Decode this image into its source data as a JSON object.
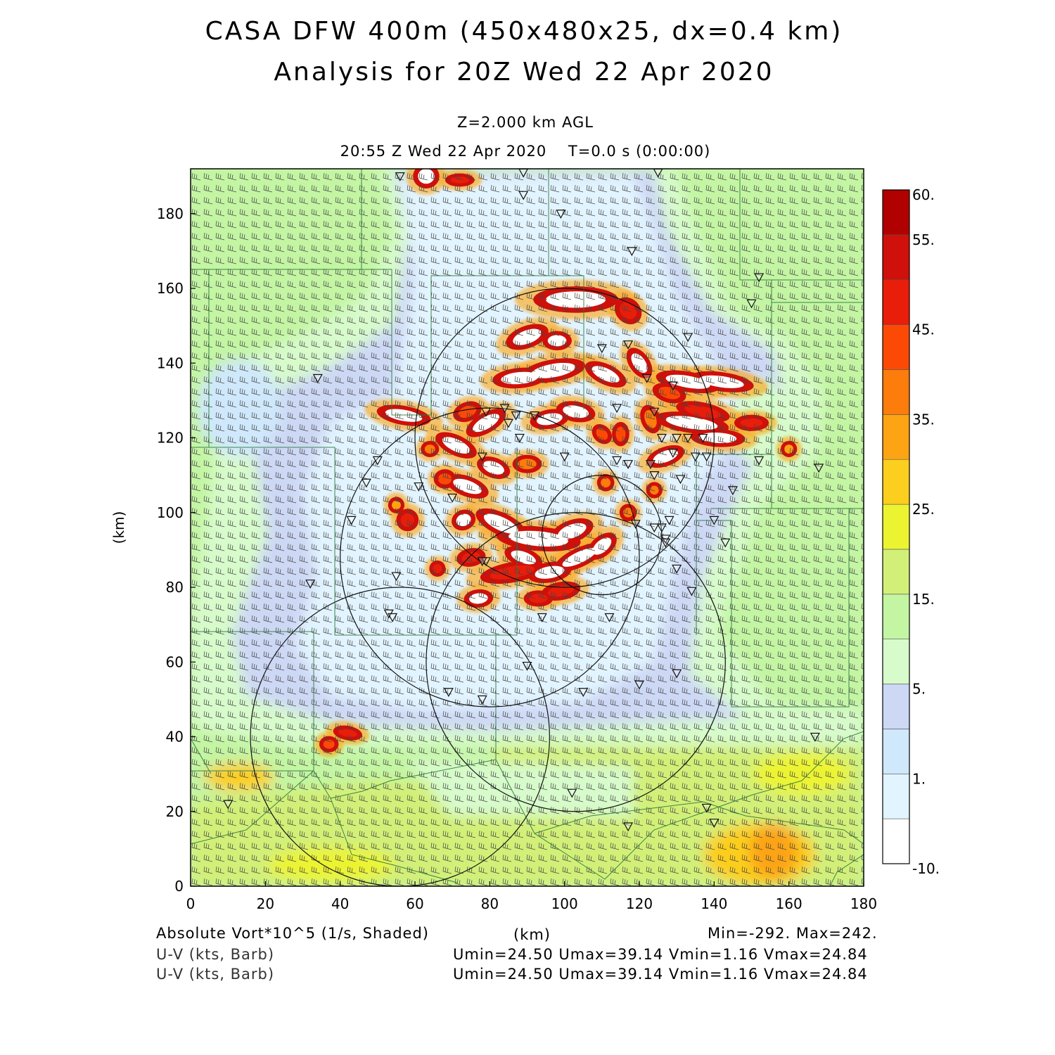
{
  "header": {
    "title": "CASA DFW 400m (450x480x25, dx=0.4 km)",
    "subtitle": "Analysis for 20Z Wed 22 Apr 2020",
    "level": "Z=2.000 km AGL",
    "valid_time": "20:55 Z Wed 22 Apr 2020    T=0.0 s (0:00:00)"
  },
  "axes": {
    "x_label": "(km)",
    "y_label": "(km)",
    "x_ticks": [
      "0",
      "20",
      "40",
      "60",
      "80",
      "100",
      "120",
      "140",
      "160",
      "180"
    ],
    "y_ticks": [
      "0",
      "20",
      "40",
      "60",
      "80",
      "100",
      "120",
      "140",
      "160",
      "180"
    ],
    "x_range": [
      0,
      180
    ],
    "y_range": [
      0,
      192
    ]
  },
  "colorbar": {
    "labels": [
      "60.",
      "55.",
      "45.",
      "35.",
      "25.",
      "15.",
      "5.",
      "1.",
      "-10."
    ],
    "colors": [
      "#ffffff",
      "#e2f4ff",
      "#cfe8fb",
      "#cdd8f5",
      "#d7fbcb",
      "#c3f5a3",
      "#d2f078",
      "#ecf432",
      "#fcce1e",
      "#fca414",
      "#fc7c0c",
      "#fc4a06",
      "#e81e0a",
      "#d0100a",
      "#b00000"
    ]
  },
  "footer": {
    "field": "Absolute Vort*10^5 (1/s, Shaded)",
    "units": "(km)",
    "minmax": "Min=-292. Max=242.",
    "wind1_label": "U-V (kts, Barb)",
    "wind1_stats": "Umin=24.50 Umax=39.14 Vmin=1.16 Vmax=24.84",
    "wind2_label": "U-V (kts, Barb)",
    "wind2_stats": "Umin=24.50 Umax=39.14 Vmin=1.16 Vmax=24.84"
  },
  "map_features": {
    "radar_range_rings_km": [
      {
        "x": 100,
        "y": 120,
        "r": 40
      },
      {
        "x": 80,
        "y": 88,
        "r": 40
      },
      {
        "x": 103,
        "y": 60,
        "r": 40
      },
      {
        "x": 56,
        "y": 40,
        "r": 40
      },
      {
        "x": 110,
        "y": 94,
        "r": 16
      }
    ],
    "station_markers_km": [
      [
        56,
        190
      ],
      [
        89,
        191
      ],
      [
        125,
        191
      ],
      [
        89,
        185
      ],
      [
        99,
        180
      ],
      [
        118,
        170
      ],
      [
        152,
        163
      ],
      [
        150,
        156
      ],
      [
        133,
        147
      ],
      [
        117,
        145
      ],
      [
        110,
        144
      ],
      [
        34,
        136
      ],
      [
        122,
        136
      ],
      [
        129,
        134
      ],
      [
        114,
        128
      ],
      [
        124,
        127
      ],
      [
        84,
        128
      ],
      [
        79,
        127
      ],
      [
        87,
        126
      ],
      [
        92,
        126
      ],
      [
        85,
        124
      ],
      [
        88,
        120
      ],
      [
        126,
        120
      ],
      [
        130,
        120
      ],
      [
        133,
        120
      ],
      [
        137,
        120
      ],
      [
        129,
        116
      ],
      [
        135,
        115
      ],
      [
        138,
        115
      ],
      [
        100,
        115
      ],
      [
        114,
        114
      ],
      [
        117,
        113
      ],
      [
        123,
        113
      ],
      [
        152,
        114
      ],
      [
        168,
        112
      ],
      [
        78,
        115
      ],
      [
        50,
        114
      ],
      [
        124,
        110
      ],
      [
        131,
        109
      ],
      [
        47,
        108
      ],
      [
        61,
        107
      ],
      [
        145,
        106
      ],
      [
        70,
        104
      ],
      [
        43,
        98
      ],
      [
        128,
        98
      ],
      [
        140,
        98
      ],
      [
        119,
        97
      ],
      [
        124,
        96
      ],
      [
        126,
        96
      ],
      [
        127,
        93
      ],
      [
        143,
        92
      ],
      [
        127,
        92
      ],
      [
        79,
        87
      ],
      [
        78,
        87
      ],
      [
        130,
        85
      ],
      [
        32,
        81
      ],
      [
        55,
        83
      ],
      [
        134,
        79
      ],
      [
        53,
        73
      ],
      [
        54,
        72
      ],
      [
        94,
        72
      ],
      [
        112,
        72
      ],
      [
        90,
        59
      ],
      [
        130,
        57
      ],
      [
        120,
        54
      ],
      [
        69,
        52
      ],
      [
        105,
        52
      ],
      [
        78,
        50
      ],
      [
        167,
        40
      ],
      [
        10,
        22
      ],
      [
        102,
        25
      ],
      [
        138,
        21
      ],
      [
        140,
        17
      ],
      [
        117,
        16
      ]
    ],
    "vorticity_cores_km": [
      [
        103,
        157,
        2.2,
        8,
        90,
        "#ffffff"
      ],
      [
        117,
        154,
        2,
        2.5,
        45,
        "#e81e0a"
      ],
      [
        90,
        147,
        1.8,
        4,
        110,
        "#ffffff"
      ],
      [
        98,
        146,
        1.5,
        2.5,
        90,
        "#ffffff"
      ],
      [
        88,
        136,
        1.6,
        5,
        95,
        "#ffffff"
      ],
      [
        97,
        138,
        1.8,
        6,
        100,
        "#ffffff"
      ],
      [
        111,
        137,
        1.6,
        4,
        65,
        "#ffffff"
      ],
      [
        120,
        140,
        1.6,
        3,
        35,
        "#ffffff"
      ],
      [
        133,
        135,
        6,
        1.6,
        -10,
        "#ffffff"
      ],
      [
        142,
        135,
        6,
        1.5,
        -8,
        "#ffffff"
      ],
      [
        128,
        132,
        3,
        1.5,
        -15,
        "#fc4a06"
      ],
      [
        137,
        127,
        5,
        1.4,
        -12,
        "#e81e0a"
      ],
      [
        134,
        124,
        7,
        1.6,
        -8,
        "#ffffff"
      ],
      [
        141,
        120,
        5,
        1.4,
        -3,
        "#ffffff"
      ],
      [
        127,
        115,
        3.5,
        1.5,
        20,
        "#ffffff"
      ],
      [
        150,
        124,
        3,
        1.2,
        0,
        "#e81e0a"
      ],
      [
        57,
        126,
        5,
        1.5,
        -10,
        "#ffffff"
      ],
      [
        74,
        127,
        1.5,
        2.5,
        110,
        "#fc4a06"
      ],
      [
        79,
        124,
        1.6,
        4,
        120,
        "#ffffff"
      ],
      [
        96,
        125,
        1.5,
        3.5,
        100,
        "#ffffff"
      ],
      [
        103,
        127,
        1.6,
        3.5,
        80,
        "#ffffff"
      ],
      [
        110,
        121,
        1.3,
        1.8,
        45,
        "#fc4a06"
      ],
      [
        115,
        121,
        1.3,
        2,
        0,
        "#fc4a06"
      ],
      [
        123,
        125,
        1.5,
        2.5,
        20,
        "#fc7c0c"
      ],
      [
        71,
        118,
        4,
        1.6,
        -25,
        "#ffffff"
      ],
      [
        81,
        112,
        3,
        1.6,
        -20,
        "#ffffff"
      ],
      [
        74,
        107,
        4,
        1.6,
        -20,
        "#ffffff"
      ],
      [
        68,
        109,
        1.8,
        1.5,
        0,
        "#fc4a06"
      ],
      [
        90,
        113,
        1.4,
        2.5,
        90,
        "#fc7c0c"
      ],
      [
        58,
        98,
        1.8,
        1.8,
        0,
        "#e81e0a"
      ],
      [
        73,
        98,
        2,
        1.6,
        20,
        "#ffffff"
      ],
      [
        83,
        97,
        1.8,
        5,
        65,
        "#ffffff"
      ],
      [
        93,
        93,
        2,
        8,
        85,
        "#ffffff"
      ],
      [
        89,
        88,
        1.5,
        3.5,
        70,
        "#ffffff"
      ],
      [
        86,
        84,
        1.6,
        6,
        100,
        "#e81e0a"
      ],
      [
        96,
        84,
        1.6,
        4,
        100,
        "#ffffff"
      ],
      [
        102,
        95,
        1.8,
        4,
        110,
        "#ffffff"
      ],
      [
        104,
        88,
        1.5,
        5,
        115,
        "#ffffff"
      ],
      [
        110,
        91,
        1.6,
        3,
        130,
        "#ffffff"
      ],
      [
        75,
        88,
        1.4,
        2.5,
        100,
        "#e81e0a"
      ],
      [
        77,
        77,
        1.4,
        2.5,
        95,
        "#ffffff"
      ],
      [
        99,
        79,
        1.4,
        3.5,
        100,
        "#e81e0a"
      ],
      [
        93,
        77,
        1.2,
        2.5,
        90,
        "#e81e0a"
      ],
      [
        66,
        85,
        1.2,
        1.2,
        0,
        "#e81e0a"
      ],
      [
        63,
        190,
        2.2,
        2,
        0,
        "#ffffff"
      ],
      [
        72,
        189,
        2.5,
        0.9,
        0,
        "#e81e0a"
      ],
      [
        37,
        38,
        1.5,
        1.2,
        0,
        "#fc4a06"
      ],
      [
        42,
        41,
        2.5,
        1,
        -10,
        "#e81e0a"
      ],
      [
        111,
        108,
        1.3,
        1.3,
        0,
        "#fc7c0c"
      ],
      [
        117,
        100,
        1.3,
        1.3,
        0,
        "#fc7c0c"
      ],
      [
        55,
        102,
        1.2,
        1.2,
        0,
        "#fca414"
      ],
      [
        64,
        117,
        1.4,
        1.2,
        0,
        "#fc7c0c"
      ],
      [
        160,
        117,
        1.2,
        1.2,
        0,
        "#fca414"
      ],
      [
        124,
        106,
        1.2,
        1.2,
        0,
        "#fc7c0c"
      ]
    ]
  }
}
